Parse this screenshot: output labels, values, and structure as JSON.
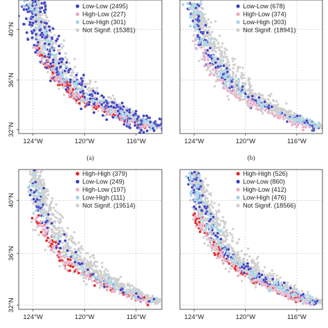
{
  "figure": {
    "colors": {
      "high_high": "#e0252b",
      "low_low": "#3a3fc4",
      "high_low": "#e8aac4",
      "low_high": "#9fd4e2",
      "not_signif": "#cfcfcf",
      "frame": "#444444",
      "grid": "#bdbdbd"
    },
    "panels": [
      {
        "id": "a",
        "caption": "(a)",
        "x_ticks": [
          "124°W",
          "120°W",
          "116°W"
        ],
        "y_ticks": [
          "40°N",
          "36°N",
          "32°N"
        ],
        "legend": [
          {
            "key": "low_low",
            "label": "Low-Low (2495)"
          },
          {
            "key": "high_low",
            "label": "High-Low (227)"
          },
          {
            "key": "low_high",
            "label": "Low-High (301)"
          },
          {
            "key": "not_signif",
            "label": "Not Signif. (15381)"
          }
        ]
      },
      {
        "id": "b",
        "caption": "(b)",
        "x_ticks": [
          "124°W",
          "120°W",
          "116°W"
        ],
        "y_ticks": [],
        "legend": [
          {
            "key": "low_low",
            "label": "Low-Low (678)"
          },
          {
            "key": "high_low",
            "label": "High-Low (374)"
          },
          {
            "key": "low_high",
            "label": "Low-High (303)"
          },
          {
            "key": "not_signif",
            "label": "Not Signif. (18941)"
          }
        ]
      },
      {
        "id": "c",
        "caption": "",
        "x_ticks": [
          "124°W",
          "120°W",
          "116°W"
        ],
        "y_ticks": [
          "40°N",
          "36°N",
          "32°N"
        ],
        "legend": [
          {
            "key": "high_high",
            "label": "High-High (379)"
          },
          {
            "key": "low_low",
            "label": "Low-Low (249)"
          },
          {
            "key": "high_low",
            "label": "High-Low (197)"
          },
          {
            "key": "low_high",
            "label": "Low-High (111)"
          },
          {
            "key": "not_signif",
            "label": "Not Signif. (19514)"
          }
        ]
      },
      {
        "id": "d",
        "caption": "",
        "x_ticks": [
          "124°W",
          "120°W",
          "116°W"
        ],
        "y_ticks": [],
        "legend": [
          {
            "key": "high_high",
            "label": "High-High (526)"
          },
          {
            "key": "low_low",
            "label": "Low-Low (860)"
          },
          {
            "key": "high_low",
            "label": "High-Low (412)"
          },
          {
            "key": "low_high",
            "label": "Low-High (476)"
          },
          {
            "key": "not_signif",
            "label": "Not Signif. (18566)"
          }
        ]
      }
    ]
  }
}
